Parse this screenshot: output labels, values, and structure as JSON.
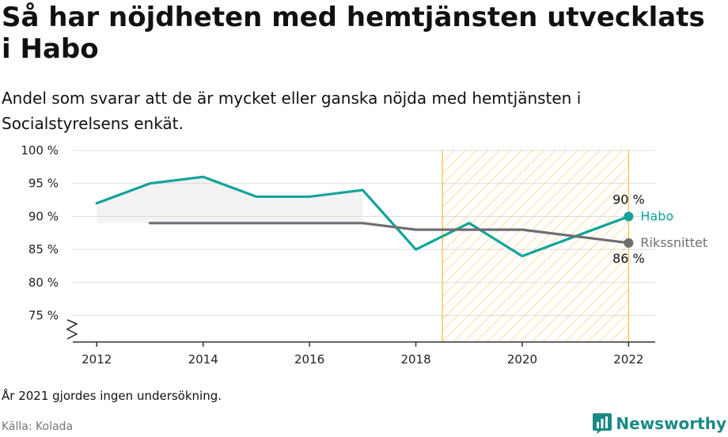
{
  "title": "Så har nöjdheten med hemtjänsten utvecklats i Habo",
  "subtitle": "Andel som svarar att de är mycket eller ganska nöjda med hemtjänsten i Socialstyrelsens enkät.",
  "note": "År 2021 gjordes ingen undersökning.",
  "source": "Källa: Kolada",
  "brand": "Newsworthy",
  "colors": {
    "habo": "#12a398",
    "riket": "#6e6e73",
    "highlight": "#f5c04a",
    "grid": "#dddddd",
    "axis": "#333333"
  },
  "chart_data": {
    "type": "line",
    "x_ticks": [
      2012,
      2014,
      2016,
      2018,
      2020,
      2022
    ],
    "y_ticks": [
      75,
      80,
      85,
      90,
      95,
      100
    ],
    "y_tick_labels": [
      "75 %",
      "80 %",
      "85 %",
      "90 %",
      "95 %",
      "100 %"
    ],
    "ylim": [
      71,
      100
    ],
    "xlim": [
      2011.55,
      2022.5
    ],
    "axis_break": true,
    "highlight_range": [
      2018.5,
      2022
    ],
    "series": [
      {
        "name": "Habo",
        "color": "#12a398",
        "x": [
          2012,
          2013,
          2014,
          2015,
          2016,
          2017,
          2018,
          2019,
          2020,
          2022
        ],
        "y": [
          92,
          95,
          96,
          93,
          93,
          94,
          85,
          89,
          84,
          90
        ],
        "end_label": "90 %"
      },
      {
        "name": "Rikssnittet",
        "color": "#6e6e73",
        "x": [
          2013,
          2014,
          2015,
          2016,
          2017,
          2018,
          2019,
          2020,
          2022
        ],
        "y": [
          89,
          89,
          89,
          89,
          89,
          88,
          88,
          88,
          86
        ],
        "end_label": "86 %"
      }
    ]
  }
}
